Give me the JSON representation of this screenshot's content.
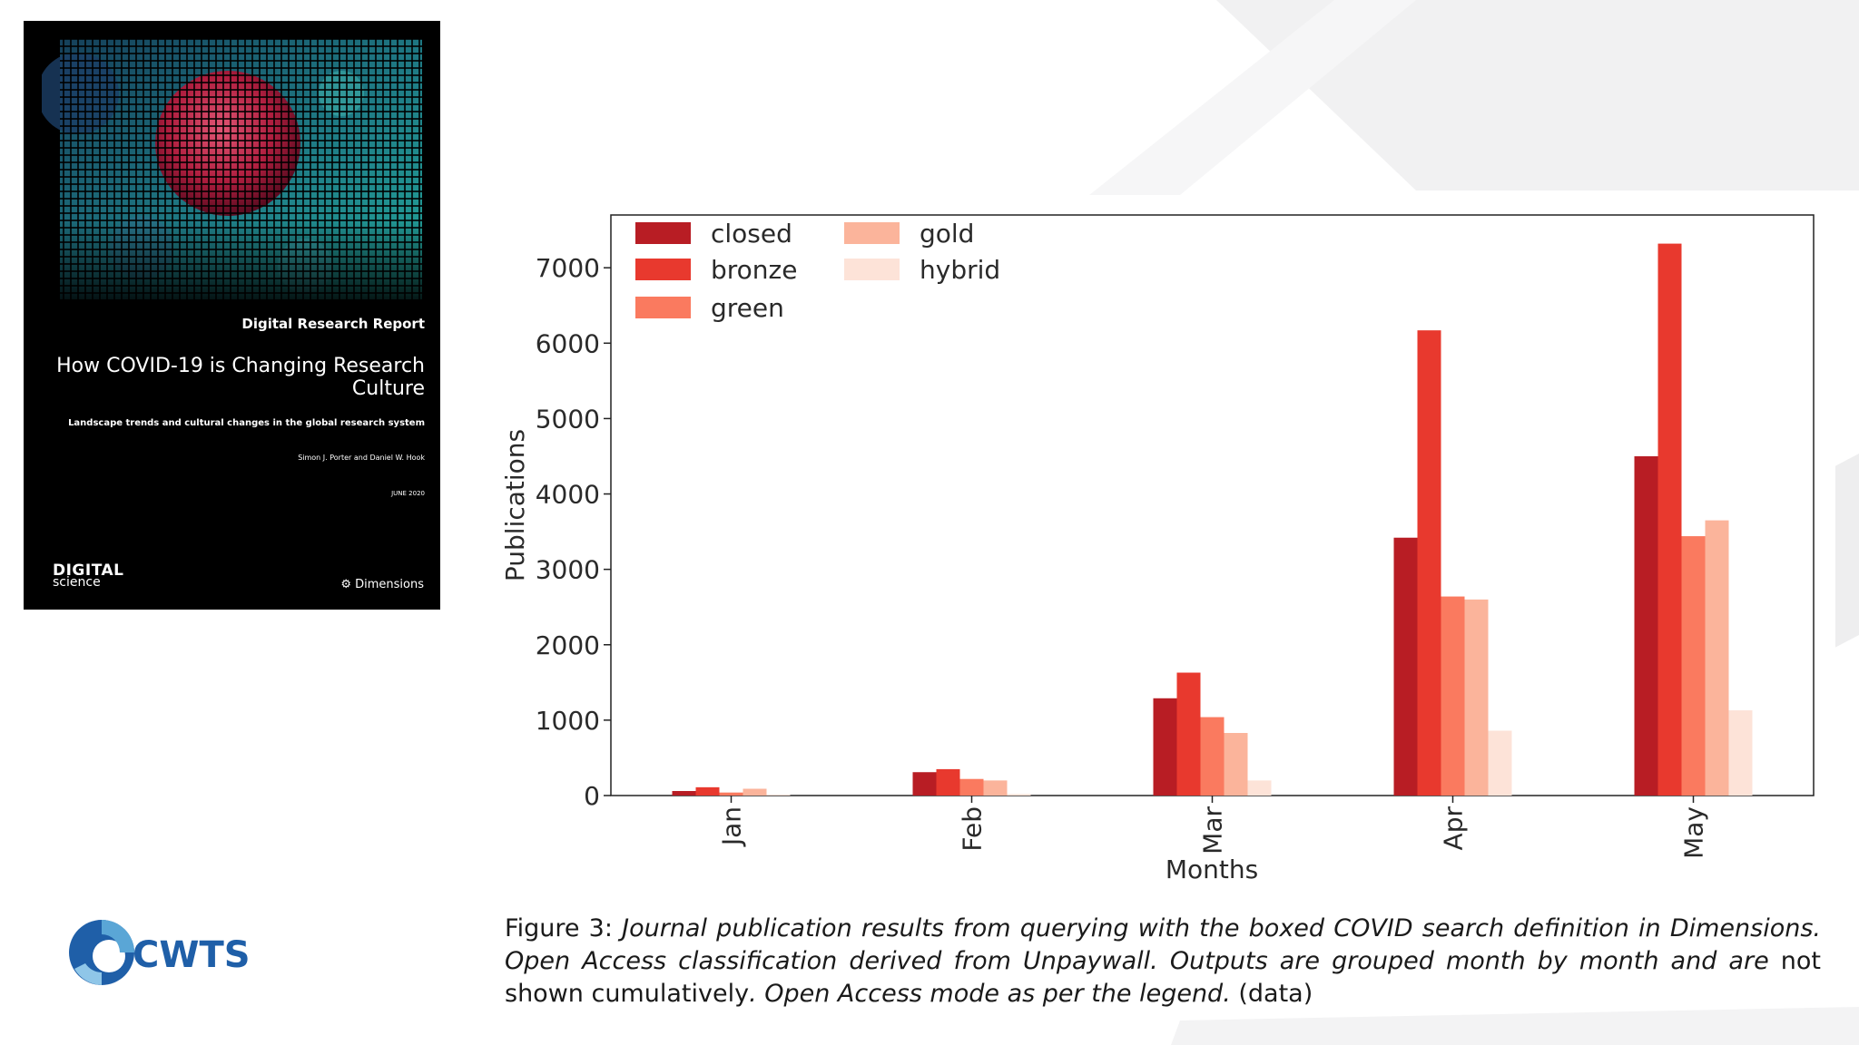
{
  "cover": {
    "kicker": "Digital Research Report",
    "title": "How COVID-19 is Changing Research Culture",
    "subtitle": "Landscape trends and cultural changes in the global research system",
    "authors": "Simon J. Porter and Daniel W. Hook",
    "date": "JUNE 2020",
    "publisher_logo_big": "DIGITAL",
    "publisher_logo_small": "science",
    "partner_logo": "Dimensions"
  },
  "institution_logo": "CWTS",
  "caption": {
    "prefix": "Figure 3: ",
    "italic_1": "Journal publication results from querying with the boxed COVID search definition in Dimensions. Open Access classification derived from Unpaywall. Outputs are grouped month by month and are ",
    "normal_1": "not shown cumulatively",
    "italic_2": ". Open Access mode as per the legend.",
    "suffix": " (data)"
  },
  "colors": {
    "closed": "#b81d24",
    "bronze": "#e8392e",
    "green": "#fa7a5f",
    "gold": "#fbb49b",
    "hybrid": "#fde3d8"
  },
  "chart_data": {
    "type": "bar",
    "xlabel": "Months",
    "ylabel": "Publications",
    "categories": [
      "Jan",
      "Feb",
      "Mar",
      "Apr",
      "May"
    ],
    "ylim": [
      0,
      7700
    ],
    "yticks": [
      0,
      1000,
      2000,
      3000,
      4000,
      5000,
      6000,
      7000
    ],
    "legend_position": "top-left",
    "grid": false,
    "series": [
      {
        "name": "closed",
        "values": [
          60,
          310,
          1290,
          3420,
          4500
        ]
      },
      {
        "name": "bronze",
        "values": [
          110,
          350,
          1630,
          6170,
          7320
        ]
      },
      {
        "name": "green",
        "values": [
          40,
          220,
          1040,
          2640,
          3440
        ]
      },
      {
        "name": "gold",
        "values": [
          90,
          200,
          830,
          2600,
          3650
        ]
      },
      {
        "name": "hybrid",
        "values": [
          10,
          20,
          200,
          860,
          1130
        ]
      }
    ]
  }
}
